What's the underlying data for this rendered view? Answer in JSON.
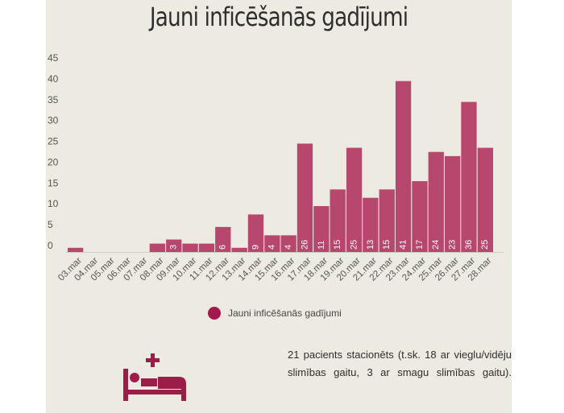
{
  "title": "Jauni inficēšanās gadījumi",
  "chart_data": {
    "type": "bar",
    "categories": [
      "03.mar",
      "04.mar",
      "05.mar",
      "06.mar",
      "07.mar",
      "08.mar",
      "09.mar",
      "10.mar",
      "11.mar",
      "12.mar",
      "13.mar",
      "14.mar",
      "15.mar",
      "16.mar",
      "17.mar",
      "18.mar",
      "19.mar",
      "20.mar",
      "21.mar",
      "22.mar",
      "23.mar",
      "24.mar",
      "25.mar",
      "26.mar",
      "27.mar",
      "28.mar"
    ],
    "series": [
      {
        "name": "Jauni inficēšanās gadījumi",
        "values": [
          1,
          0,
          0,
          0,
          0,
          2,
          3,
          2,
          2,
          6,
          1,
          9,
          4,
          4,
          26,
          11,
          15,
          25,
          13,
          15,
          41,
          17,
          24,
          23,
          36,
          25
        ],
        "data_labels": [
          "",
          "",
          "",
          "",
          "",
          "",
          "3",
          "",
          "",
          "6",
          "",
          "9",
          "4",
          "4",
          "26",
          "11",
          "15",
          "25",
          "13",
          "15",
          "41",
          "17",
          "24",
          "23",
          "36",
          "25"
        ]
      }
    ],
    "yticks": [
      0,
      5,
      10,
      15,
      20,
      25,
      30,
      35,
      40,
      45
    ],
    "ylim": [
      0,
      45
    ],
    "grid": false,
    "legend": "bottom",
    "bar_color": "#b8476e",
    "label_color": "#ffffff"
  },
  "note": {
    "text": "21 pacients stacionēts (t.sk. 18 ar vieglu/vidēju slimības gaitu, 3 ar smagu slimības gaitu)."
  },
  "colors": {
    "background": "#edeae1",
    "accent": "#a4184d",
    "icon": "#9b1d48"
  }
}
